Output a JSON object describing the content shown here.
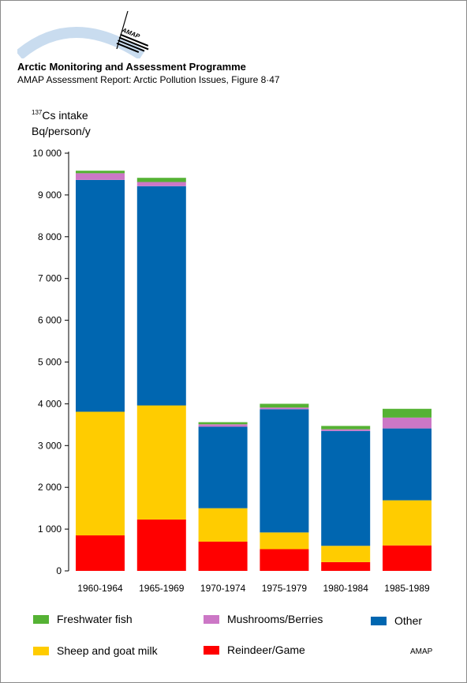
{
  "header": {
    "logo_text": "AMAP",
    "organization": "Arctic Monitoring and Assessment Programme",
    "report": "AMAP Assessment Report: Arctic Pollution Issues, Figure 8·47"
  },
  "credit": "AMAP",
  "colors": {
    "Reindeer/Game": "#ff0000",
    "Sheep and goat milk": "#ffcc00",
    "Other": "#0066b0",
    "Mushrooms/Berries": "#cc77c6",
    "Freshwater fish": "#55b234"
  },
  "chart_data": {
    "type": "bar",
    "stacked": true,
    "ylabel_super": "137",
    "ylabel_line1": "Cs intake",
    "ylabel_line2": "Bq/person/y",
    "ylim": [
      0,
      10000
    ],
    "yticks": [
      0,
      1000,
      2000,
      3000,
      4000,
      5000,
      6000,
      7000,
      8000,
      9000,
      10000
    ],
    "ytick_labels": [
      "0",
      "1 000",
      "2 000",
      "3 000",
      "4 000",
      "5 000",
      "6 000",
      "7 000",
      "8 000",
      "9 000",
      "10 000"
    ],
    "grid": false,
    "legend_position": "bottom",
    "categories": [
      "1960-1964",
      "1965-1969",
      "1970-1974",
      "1975-1979",
      "1980-1984",
      "1985-1989"
    ],
    "series": [
      {
        "name": "Reindeer/Game",
        "values": [
          850,
          1230,
          700,
          520,
          210,
          610
        ]
      },
      {
        "name": "Sheep and goat milk",
        "values": [
          2960,
          2730,
          800,
          400,
          390,
          1080
        ]
      },
      {
        "name": "Other",
        "values": [
          5550,
          5250,
          1950,
          2950,
          2750,
          1720
        ]
      },
      {
        "name": "Mushrooms/Berries",
        "values": [
          160,
          100,
          60,
          40,
          40,
          260
        ]
      },
      {
        "name": "Freshwater fish",
        "values": [
          60,
          100,
          50,
          90,
          80,
          210
        ]
      }
    ]
  },
  "legend": [
    {
      "label": "Freshwater fish",
      "series": "Freshwater fish"
    },
    {
      "label": "Mushrooms/Berries",
      "series": "Mushrooms/Berries"
    },
    {
      "label": "Other",
      "series": "Other"
    },
    {
      "label": "Sheep and goat milk",
      "series": "Sheep and goat milk"
    },
    {
      "label": "Reindeer/Game",
      "series": "Reindeer/Game"
    }
  ]
}
